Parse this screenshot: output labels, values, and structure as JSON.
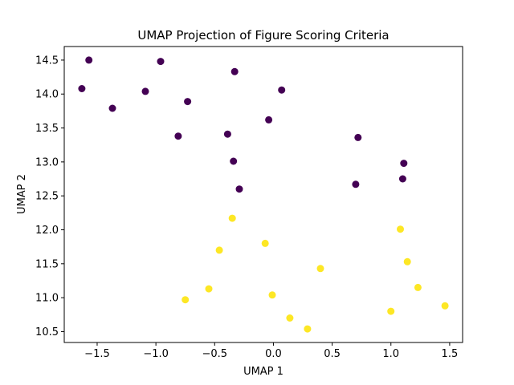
{
  "chart_data": {
    "type": "scatter",
    "title": "UMAP Projection of Figure Scoring Criteria",
    "xlabel": "UMAP 1",
    "ylabel": "UMAP 2",
    "xlim": [
      -1.78,
      1.61
    ],
    "ylim": [
      10.34,
      14.7
    ],
    "xticks": [
      -1.5,
      -1.0,
      -0.5,
      0.0,
      0.5,
      1.0,
      1.5
    ],
    "xtick_labels": [
      "−1.5",
      "−1.0",
      "−0.5",
      "0.0",
      "0.5",
      "1.0",
      "1.5"
    ],
    "yticks": [
      10.5,
      11.0,
      11.5,
      12.0,
      12.5,
      13.0,
      13.5,
      14.0,
      14.5
    ],
    "ytick_labels": [
      "10.5",
      "11.0",
      "11.5",
      "12.0",
      "12.5",
      "13.0",
      "13.5",
      "14.0",
      "14.5"
    ],
    "grid": false,
    "series": [
      {
        "color": "#440154",
        "points": [
          [
            -1.57,
            14.5
          ],
          [
            -0.96,
            14.48
          ],
          [
            -0.33,
            14.33
          ],
          [
            -1.63,
            14.08
          ],
          [
            -1.09,
            14.04
          ],
          [
            0.07,
            14.06
          ],
          [
            -0.73,
            13.89
          ],
          [
            -1.37,
            13.79
          ],
          [
            -0.04,
            13.62
          ],
          [
            -0.39,
            13.41
          ],
          [
            -0.81,
            13.38
          ],
          [
            0.72,
            13.36
          ],
          [
            -0.34,
            13.01
          ],
          [
            1.11,
            12.98
          ],
          [
            1.1,
            12.75
          ],
          [
            0.7,
            12.67
          ],
          [
            -0.29,
            12.6
          ]
        ]
      },
      {
        "color": "#fde725",
        "points": [
          [
            -0.35,
            12.17
          ],
          [
            1.08,
            12.01
          ],
          [
            -0.07,
            11.8
          ],
          [
            -0.46,
            11.7
          ],
          [
            1.14,
            11.53
          ],
          [
            0.4,
            11.43
          ],
          [
            -0.55,
            11.13
          ],
          [
            1.23,
            11.15
          ],
          [
            -0.01,
            11.04
          ],
          [
            -0.75,
            10.97
          ],
          [
            1.46,
            10.88
          ],
          [
            1.0,
            10.8
          ],
          [
            0.14,
            10.7
          ],
          [
            0.29,
            10.54
          ]
        ]
      }
    ]
  }
}
